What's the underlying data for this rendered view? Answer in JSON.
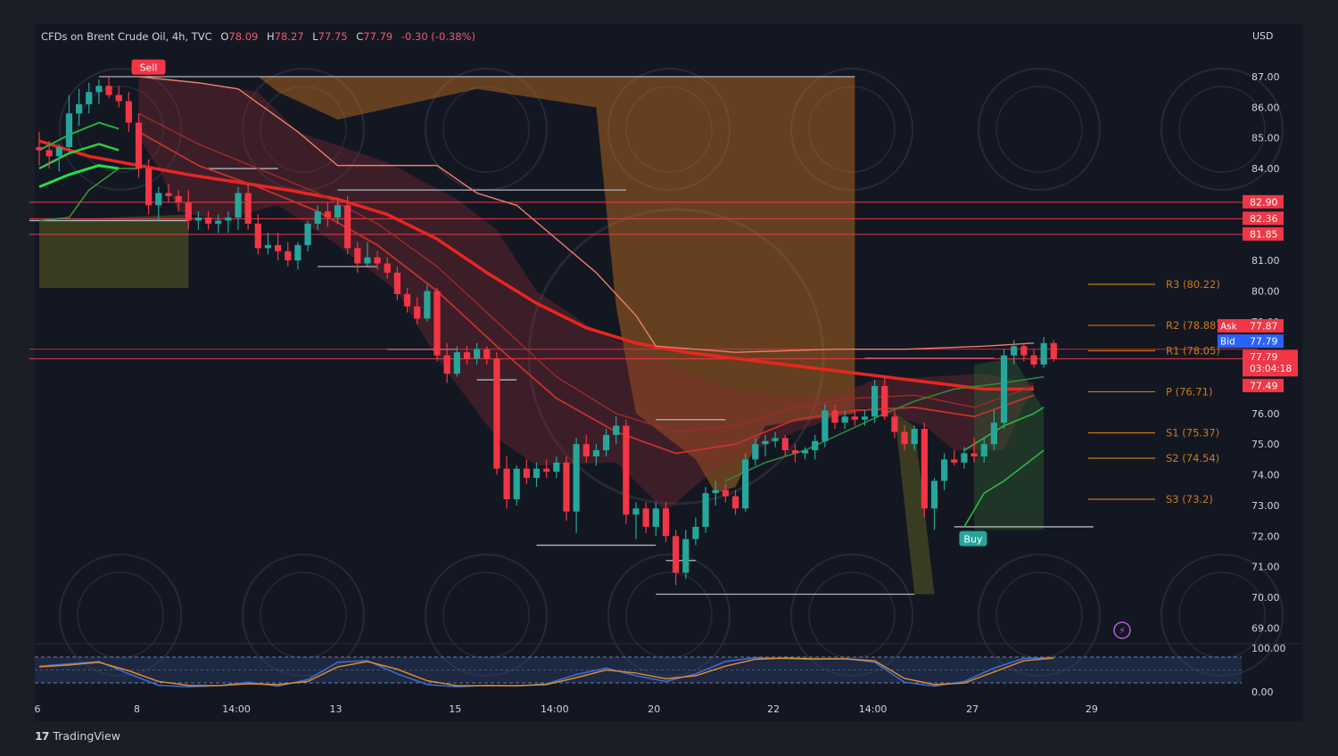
{
  "header": {
    "symbol": "CFDs on Brent Crude Oil, 4h, TVC",
    "open_key": "O",
    "open": "78.09",
    "high_key": "H",
    "high": "78.27",
    "low_key": "L",
    "low": "77.75",
    "close_key": "C",
    "close": "77.79",
    "change": "-0.30 (-0.38%)"
  },
  "currency": "USD",
  "brand": {
    "logo": "17",
    "name": "TradingView"
  },
  "colors": {
    "bg": "#131722",
    "frame": "#1b1e27",
    "bull": "#26a69a",
    "bear": "#f23645",
    "ema": "#e8261f",
    "zone_orange": "#c8741e",
    "zone_red": "#8a2a33",
    "zone_olive": "#6b6a22",
    "pivot": "#c97a1a",
    "oscillator_blue": "#3c6fd6",
    "oscillator_orange": "#e08a2a"
  },
  "chart_data": {
    "type": "candlestick",
    "title": "CFDs on Brent Crude Oil, 4h, TVC",
    "y_ticks": [
      "87.00",
      "86.00",
      "85.00",
      "84.00",
      "81.00",
      "80.00",
      "79.00",
      "76.00",
      "75.00",
      "74.00",
      "73.00",
      "72.00",
      "71.00",
      "70.00",
      "69.00"
    ],
    "ylim": [
      68.5,
      87.7
    ],
    "x_ticks": [
      {
        "x": 0,
        "label": "6"
      },
      {
        "x": 10,
        "label": "8"
      },
      {
        "x": 20,
        "label": "14:00"
      },
      {
        "x": 30,
        "label": "13"
      },
      {
        "x": 42,
        "label": "15"
      },
      {
        "x": 52,
        "label": "14:00"
      },
      {
        "x": 62,
        "label": "20"
      },
      {
        "x": 74,
        "label": "22"
      },
      {
        "x": 84,
        "label": "14:00"
      },
      {
        "x": 94,
        "label": "27"
      },
      {
        "x": 106,
        "label": "29"
      }
    ],
    "price_labels": [
      {
        "label": "82.90",
        "value": 82.9,
        "color": "#f23645"
      },
      {
        "label": "82.36",
        "value": 82.36,
        "color": "#f23645"
      },
      {
        "label": "81.85",
        "value": 81.85,
        "color": "#f23645"
      },
      {
        "label": "77.87",
        "value": 78.85,
        "color": "#f23645",
        "tag": "Ask"
      },
      {
        "label": "77.79",
        "value": 78.35,
        "color": "#2962ff",
        "tag": "Bid"
      },
      {
        "label": "77.79",
        "value": 77.85,
        "color": "#f23645",
        "tag": "",
        "sub": "03:04:18"
      },
      {
        "label": "77.49",
        "value": 76.9,
        "color": "#f23645"
      }
    ],
    "pivots": [
      {
        "label": "R3 (80.22)",
        "value": 80.22
      },
      {
        "label": "R2 (78.88)",
        "value": 78.88
      },
      {
        "label": "R1 (78.05)",
        "value": 78.05
      },
      {
        "label": "P (76.71)",
        "value": 76.71
      },
      {
        "label": "S1 (75.37)",
        "value": 75.37
      },
      {
        "label": "S2 (74.54)",
        "value": 74.54
      },
      {
        "label": "S3 (73.2)",
        "value": 73.2
      }
    ],
    "signals": [
      {
        "label": "Sell",
        "x": 10,
        "value": 87.3,
        "color": "#f23645"
      },
      {
        "label": "Buy",
        "x": 93,
        "value": 71.9,
        "color": "#26a69a"
      }
    ],
    "candles": [
      {
        "x": 0,
        "o": 84.7,
        "h": 85.2,
        "l": 84.1,
        "c": 84.6
      },
      {
        "x": 1,
        "o": 84.6,
        "h": 84.9,
        "l": 84.0,
        "c": 84.4
      },
      {
        "x": 2,
        "o": 84.4,
        "h": 84.8,
        "l": 83.9,
        "c": 84.7
      },
      {
        "x": 3,
        "o": 84.7,
        "h": 86.4,
        "l": 84.6,
        "c": 85.8
      },
      {
        "x": 4,
        "o": 85.8,
        "h": 86.6,
        "l": 85.4,
        "c": 86.1
      },
      {
        "x": 5,
        "o": 86.1,
        "h": 86.8,
        "l": 85.8,
        "c": 86.5
      },
      {
        "x": 6,
        "o": 86.5,
        "h": 86.9,
        "l": 86.1,
        "c": 86.7
      },
      {
        "x": 7,
        "o": 86.7,
        "h": 87.0,
        "l": 86.3,
        "c": 86.4
      },
      {
        "x": 8,
        "o": 86.4,
        "h": 86.7,
        "l": 86.0,
        "c": 86.2
      },
      {
        "x": 9,
        "o": 86.2,
        "h": 86.5,
        "l": 85.2,
        "c": 85.5
      },
      {
        "x": 10,
        "o": 85.5,
        "h": 85.8,
        "l": 83.7,
        "c": 84.0
      },
      {
        "x": 11,
        "o": 84.0,
        "h": 84.3,
        "l": 82.5,
        "c": 82.8
      },
      {
        "x": 12,
        "o": 82.8,
        "h": 83.4,
        "l": 82.3,
        "c": 83.2
      },
      {
        "x": 13,
        "o": 83.2,
        "h": 83.5,
        "l": 82.9,
        "c": 83.1
      },
      {
        "x": 14,
        "o": 83.1,
        "h": 83.3,
        "l": 82.6,
        "c": 82.9
      },
      {
        "x": 15,
        "o": 82.9,
        "h": 83.3,
        "l": 82.0,
        "c": 82.3
      },
      {
        "x": 16,
        "o": 82.3,
        "h": 82.6,
        "l": 82.0,
        "c": 82.4
      },
      {
        "x": 17,
        "o": 82.4,
        "h": 82.6,
        "l": 82.0,
        "c": 82.2
      },
      {
        "x": 18,
        "o": 82.2,
        "h": 82.5,
        "l": 81.9,
        "c": 82.3
      },
      {
        "x": 19,
        "o": 82.3,
        "h": 82.6,
        "l": 81.9,
        "c": 82.4
      },
      {
        "x": 20,
        "o": 82.4,
        "h": 83.4,
        "l": 82.0,
        "c": 83.2
      },
      {
        "x": 21,
        "o": 83.2,
        "h": 83.5,
        "l": 82.0,
        "c": 82.2
      },
      {
        "x": 22,
        "o": 82.2,
        "h": 82.5,
        "l": 81.2,
        "c": 81.4
      },
      {
        "x": 23,
        "o": 81.4,
        "h": 81.9,
        "l": 81.2,
        "c": 81.5
      },
      {
        "x": 24,
        "o": 81.5,
        "h": 81.9,
        "l": 81.0,
        "c": 81.3
      },
      {
        "x": 25,
        "o": 81.3,
        "h": 81.6,
        "l": 80.8,
        "c": 81.0
      },
      {
        "x": 26,
        "o": 81.0,
        "h": 81.6,
        "l": 80.7,
        "c": 81.5
      },
      {
        "x": 27,
        "o": 81.5,
        "h": 82.3,
        "l": 81.3,
        "c": 82.2
      },
      {
        "x": 28,
        "o": 82.2,
        "h": 82.8,
        "l": 82.0,
        "c": 82.6
      },
      {
        "x": 29,
        "o": 82.6,
        "h": 82.9,
        "l": 82.1,
        "c": 82.4
      },
      {
        "x": 30,
        "o": 82.4,
        "h": 83.0,
        "l": 82.2,
        "c": 82.8
      },
      {
        "x": 31,
        "o": 82.8,
        "h": 83.1,
        "l": 81.2,
        "c": 81.4
      },
      {
        "x": 32,
        "o": 81.4,
        "h": 81.6,
        "l": 80.6,
        "c": 80.9
      },
      {
        "x": 33,
        "o": 80.9,
        "h": 81.6,
        "l": 80.8,
        "c": 81.1
      },
      {
        "x": 34,
        "o": 81.1,
        "h": 81.3,
        "l": 80.7,
        "c": 80.9
      },
      {
        "x": 35,
        "o": 80.9,
        "h": 81.1,
        "l": 80.4,
        "c": 80.6
      },
      {
        "x": 36,
        "o": 80.6,
        "h": 80.8,
        "l": 79.7,
        "c": 79.9
      },
      {
        "x": 37,
        "o": 79.9,
        "h": 80.1,
        "l": 79.3,
        "c": 79.5
      },
      {
        "x": 38,
        "o": 79.5,
        "h": 79.8,
        "l": 78.9,
        "c": 79.1
      },
      {
        "x": 39,
        "o": 79.1,
        "h": 80.2,
        "l": 79.0,
        "c": 80.0
      },
      {
        "x": 40,
        "o": 80.0,
        "h": 80.1,
        "l": 77.7,
        "c": 77.9
      },
      {
        "x": 41,
        "o": 77.9,
        "h": 78.3,
        "l": 77.0,
        "c": 77.3
      },
      {
        "x": 42,
        "o": 77.3,
        "h": 78.2,
        "l": 77.2,
        "c": 78.0
      },
      {
        "x": 43,
        "o": 78.0,
        "h": 78.2,
        "l": 77.6,
        "c": 77.8
      },
      {
        "x": 44,
        "o": 77.8,
        "h": 78.3,
        "l": 77.6,
        "c": 78.1
      },
      {
        "x": 45,
        "o": 78.1,
        "h": 78.2,
        "l": 77.6,
        "c": 77.8
      },
      {
        "x": 46,
        "o": 77.8,
        "h": 78.0,
        "l": 74.0,
        "c": 74.2
      },
      {
        "x": 47,
        "o": 74.2,
        "h": 74.6,
        "l": 72.9,
        "c": 73.2
      },
      {
        "x": 48,
        "o": 73.2,
        "h": 74.3,
        "l": 73.0,
        "c": 74.2
      },
      {
        "x": 49,
        "o": 74.2,
        "h": 74.5,
        "l": 73.7,
        "c": 73.9
      },
      {
        "x": 50,
        "o": 73.9,
        "h": 74.4,
        "l": 73.6,
        "c": 74.2
      },
      {
        "x": 51,
        "o": 74.2,
        "h": 74.5,
        "l": 73.9,
        "c": 74.1
      },
      {
        "x": 52,
        "o": 74.1,
        "h": 74.6,
        "l": 73.9,
        "c": 74.4
      },
      {
        "x": 53,
        "o": 74.4,
        "h": 74.6,
        "l": 72.5,
        "c": 72.8
      },
      {
        "x": 54,
        "o": 72.8,
        "h": 75.2,
        "l": 72.1,
        "c": 75.0
      },
      {
        "x": 55,
        "o": 75.0,
        "h": 75.3,
        "l": 74.4,
        "c": 74.6
      },
      {
        "x": 56,
        "o": 74.6,
        "h": 75.0,
        "l": 74.3,
        "c": 74.8
      },
      {
        "x": 57,
        "o": 74.8,
        "h": 75.5,
        "l": 74.6,
        "c": 75.3
      },
      {
        "x": 58,
        "o": 75.3,
        "h": 75.9,
        "l": 75.0,
        "c": 75.6
      },
      {
        "x": 59,
        "o": 75.6,
        "h": 75.8,
        "l": 72.4,
        "c": 72.7
      },
      {
        "x": 60,
        "o": 72.7,
        "h": 73.1,
        "l": 71.9,
        "c": 72.9
      },
      {
        "x": 61,
        "o": 72.9,
        "h": 73.1,
        "l": 72.1,
        "c": 72.3
      },
      {
        "x": 62,
        "o": 72.3,
        "h": 73.1,
        "l": 72.0,
        "c": 72.9
      },
      {
        "x": 63,
        "o": 72.9,
        "h": 73.1,
        "l": 71.8,
        "c": 72.0
      },
      {
        "x": 64,
        "o": 72.0,
        "h": 72.2,
        "l": 70.4,
        "c": 70.8
      },
      {
        "x": 65,
        "o": 70.8,
        "h": 72.2,
        "l": 70.6,
        "c": 71.9
      },
      {
        "x": 66,
        "o": 71.9,
        "h": 72.6,
        "l": 71.7,
        "c": 72.3
      },
      {
        "x": 67,
        "o": 72.3,
        "h": 73.6,
        "l": 72.1,
        "c": 73.4
      },
      {
        "x": 68,
        "o": 73.4,
        "h": 73.8,
        "l": 73.0,
        "c": 73.5
      },
      {
        "x": 69,
        "o": 73.5,
        "h": 73.7,
        "l": 73.1,
        "c": 73.3
      },
      {
        "x": 70,
        "o": 73.3,
        "h": 73.5,
        "l": 72.7,
        "c": 72.9
      },
      {
        "x": 71,
        "o": 72.9,
        "h": 74.7,
        "l": 72.8,
        "c": 74.5
      },
      {
        "x": 72,
        "o": 74.5,
        "h": 75.2,
        "l": 74.3,
        "c": 75.0
      },
      {
        "x": 73,
        "o": 75.0,
        "h": 75.3,
        "l": 74.6,
        "c": 75.1
      },
      {
        "x": 74,
        "o": 75.1,
        "h": 75.4,
        "l": 74.9,
        "c": 75.2
      },
      {
        "x": 75,
        "o": 75.2,
        "h": 75.3,
        "l": 74.6,
        "c": 74.8
      },
      {
        "x": 76,
        "o": 74.8,
        "h": 75.0,
        "l": 74.4,
        "c": 74.7
      },
      {
        "x": 77,
        "o": 74.7,
        "h": 74.9,
        "l": 74.5,
        "c": 74.8
      },
      {
        "x": 78,
        "o": 74.8,
        "h": 75.3,
        "l": 74.5,
        "c": 75.1
      },
      {
        "x": 79,
        "o": 75.1,
        "h": 76.3,
        "l": 74.9,
        "c": 76.1
      },
      {
        "x": 80,
        "o": 76.1,
        "h": 76.3,
        "l": 75.5,
        "c": 75.7
      },
      {
        "x": 81,
        "o": 75.7,
        "h": 76.1,
        "l": 75.5,
        "c": 75.9
      },
      {
        "x": 82,
        "o": 75.9,
        "h": 76.1,
        "l": 75.6,
        "c": 75.8
      },
      {
        "x": 83,
        "o": 75.8,
        "h": 76.1,
        "l": 75.6,
        "c": 75.9
      },
      {
        "x": 84,
        "o": 75.9,
        "h": 77.1,
        "l": 75.7,
        "c": 76.9
      },
      {
        "x": 85,
        "o": 76.9,
        "h": 77.2,
        "l": 75.8,
        "c": 75.9
      },
      {
        "x": 86,
        "o": 75.9,
        "h": 76.1,
        "l": 75.2,
        "c": 75.4
      },
      {
        "x": 87,
        "o": 75.4,
        "h": 75.6,
        "l": 74.8,
        "c": 75.0
      },
      {
        "x": 88,
        "o": 75.0,
        "h": 75.6,
        "l": 74.8,
        "c": 75.5
      },
      {
        "x": 89,
        "o": 75.5,
        "h": 75.7,
        "l": 72.6,
        "c": 72.9
      },
      {
        "x": 90,
        "o": 72.9,
        "h": 73.9,
        "l": 72.2,
        "c": 73.8
      },
      {
        "x": 91,
        "o": 73.8,
        "h": 74.7,
        "l": 73.5,
        "c": 74.5
      },
      {
        "x": 92,
        "o": 74.5,
        "h": 74.8,
        "l": 74.3,
        "c": 74.4
      },
      {
        "x": 93,
        "o": 74.4,
        "h": 74.9,
        "l": 74.2,
        "c": 74.7
      },
      {
        "x": 94,
        "o": 74.7,
        "h": 75.2,
        "l": 74.4,
        "c": 74.6
      },
      {
        "x": 95,
        "o": 74.6,
        "h": 75.2,
        "l": 74.4,
        "c": 75.0
      },
      {
        "x": 96,
        "o": 75.0,
        "h": 76.1,
        "l": 74.8,
        "c": 75.7
      },
      {
        "x": 97,
        "o": 75.7,
        "h": 78.1,
        "l": 75.5,
        "c": 77.9
      },
      {
        "x": 98,
        "o": 77.9,
        "h": 78.4,
        "l": 77.6,
        "c": 78.2
      },
      {
        "x": 99,
        "o": 78.2,
        "h": 78.3,
        "l": 77.7,
        "c": 77.9
      },
      {
        "x": 100,
        "o": 77.9,
        "h": 78.1,
        "l": 77.5,
        "c": 77.6
      },
      {
        "x": 101,
        "o": 77.6,
        "h": 78.5,
        "l": 77.5,
        "c": 78.3
      },
      {
        "x": 102,
        "o": 78.3,
        "h": 78.4,
        "l": 77.7,
        "c": 77.8
      }
    ],
    "ema_200": [
      [
        0,
        84.9
      ],
      [
        5,
        84.4
      ],
      [
        10,
        84.1
      ],
      [
        15,
        83.8
      ],
      [
        20,
        83.55
      ],
      [
        25,
        83.3
      ],
      [
        30,
        83.0
      ],
      [
        35,
        82.5
      ],
      [
        40,
        81.7
      ],
      [
        45,
        80.6
      ],
      [
        50,
        79.6
      ],
      [
        55,
        78.8
      ],
      [
        60,
        78.3
      ],
      [
        65,
        78.0
      ],
      [
        70,
        77.8
      ],
      [
        75,
        77.6
      ],
      [
        80,
        77.4
      ],
      [
        85,
        77.2
      ],
      [
        90,
        77.0
      ],
      [
        95,
        76.8
      ],
      [
        100,
        76.8
      ]
    ],
    "oscillator": {
      "ticks": [
        "100.00",
        "0.00"
      ],
      "ylim": [
        0,
        100
      ],
      "k": [
        [
          0,
          60
        ],
        [
          3,
          66
        ],
        [
          6,
          72
        ],
        [
          9,
          40
        ],
        [
          12,
          10
        ],
        [
          15,
          6
        ],
        [
          18,
          9
        ],
        [
          21,
          18
        ],
        [
          24,
          8
        ],
        [
          27,
          25
        ],
        [
          30,
          70
        ],
        [
          33,
          74
        ],
        [
          36,
          40
        ],
        [
          39,
          12
        ],
        [
          42,
          6
        ],
        [
          45,
          10
        ],
        [
          48,
          8
        ],
        [
          51,
          14
        ],
        [
          54,
          38
        ],
        [
          57,
          55
        ],
        [
          60,
          35
        ],
        [
          63,
          20
        ],
        [
          66,
          40
        ],
        [
          69,
          72
        ],
        [
          72,
          82
        ],
        [
          75,
          80
        ],
        [
          78,
          78
        ],
        [
          81,
          80
        ],
        [
          84,
          70
        ],
        [
          87,
          18
        ],
        [
          90,
          8
        ],
        [
          93,
          20
        ],
        [
          96,
          55
        ],
        [
          99,
          80
        ],
        [
          102,
          82
        ]
      ],
      "d": [
        [
          0,
          58
        ],
        [
          3,
          63
        ],
        [
          6,
          70
        ],
        [
          9,
          48
        ],
        [
          12,
          20
        ],
        [
          15,
          10
        ],
        [
          18,
          9
        ],
        [
          21,
          14
        ],
        [
          24,
          12
        ],
        [
          27,
          20
        ],
        [
          30,
          58
        ],
        [
          33,
          72
        ],
        [
          36,
          52
        ],
        [
          39,
          22
        ],
        [
          42,
          9
        ],
        [
          45,
          9
        ],
        [
          48,
          9
        ],
        [
          51,
          12
        ],
        [
          54,
          30
        ],
        [
          57,
          50
        ],
        [
          60,
          42
        ],
        [
          63,
          27
        ],
        [
          66,
          35
        ],
        [
          69,
          60
        ],
        [
          72,
          78
        ],
        [
          75,
          81
        ],
        [
          78,
          79
        ],
        [
          81,
          79
        ],
        [
          84,
          74
        ],
        [
          87,
          28
        ],
        [
          90,
          12
        ],
        [
          93,
          16
        ],
        [
          96,
          45
        ],
        [
          99,
          74
        ],
        [
          102,
          81
        ]
      ]
    }
  }
}
